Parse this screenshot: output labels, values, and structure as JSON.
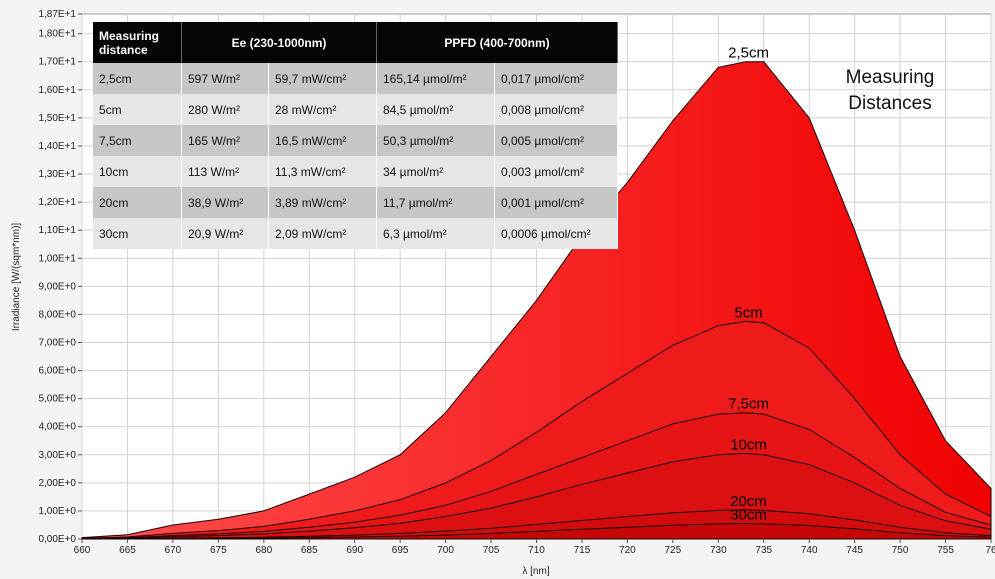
{
  "chart_data": {
    "type": "area",
    "xlabel": "λ [nm]",
    "ylabel": "Irradiance [W/(sqm*nm)]",
    "xlim": [
      660,
      760
    ],
    "ylim": [
      0,
      18.7
    ],
    "x_ticks": [
      "660",
      "665",
      "670",
      "675",
      "680",
      "685",
      "690",
      "695",
      "700",
      "705",
      "710",
      "715",
      "720",
      "725",
      "730",
      "735",
      "740",
      "745",
      "750",
      "755",
      "76"
    ],
    "y_ticks": [
      "0,00E+0",
      "1,00E+0",
      "2,00E+0",
      "3,00E+0",
      "4,00E+0",
      "5,00E+0",
      "6,00E+0",
      "7,00E+0",
      "8,00E+0",
      "9,00E+0",
      "1,00E+1",
      "1,10E+1",
      "1,20E+1",
      "1,30E+1",
      "1,40E+1",
      "1,50E+1",
      "1,60E+1",
      "1,70E+1",
      "1,80E+1",
      "1,87E+1"
    ],
    "grid": true,
    "x": [
      660,
      665,
      670,
      675,
      680,
      685,
      690,
      695,
      700,
      705,
      710,
      715,
      720,
      725,
      730,
      733,
      735,
      740,
      745,
      750,
      755,
      760
    ],
    "series": [
      {
        "name": "2,5cm",
        "values": [
          0.05,
          0.15,
          0.5,
          0.7,
          1.0,
          1.6,
          2.2,
          3.0,
          4.5,
          6.5,
          8.5,
          10.8,
          12.7,
          14.9,
          16.8,
          17.0,
          17.0,
          15.0,
          11.0,
          6.5,
          3.5,
          1.8
        ]
      },
      {
        "name": "5cm",
        "values": [
          0.02,
          0.07,
          0.2,
          0.3,
          0.45,
          0.7,
          1.0,
          1.4,
          2.0,
          2.8,
          3.8,
          4.9,
          5.9,
          6.9,
          7.6,
          7.75,
          7.7,
          6.8,
          5.0,
          3.0,
          1.6,
          0.8
        ]
      },
      {
        "name": "7,5cm",
        "values": [
          0.01,
          0.04,
          0.12,
          0.18,
          0.27,
          0.42,
          0.6,
          0.85,
          1.2,
          1.7,
          2.3,
          2.9,
          3.5,
          4.1,
          4.45,
          4.5,
          4.45,
          3.9,
          2.9,
          1.8,
          0.95,
          0.5
        ]
      },
      {
        "name": "10cm",
        "values": [
          0.01,
          0.03,
          0.08,
          0.12,
          0.18,
          0.28,
          0.4,
          0.56,
          0.8,
          1.1,
          1.5,
          1.95,
          2.35,
          2.75,
          3.0,
          3.05,
          3.0,
          2.65,
          2.0,
          1.2,
          0.65,
          0.35
        ]
      },
      {
        "name": "20cm",
        "values": [
          0.0,
          0.01,
          0.03,
          0.04,
          0.06,
          0.1,
          0.14,
          0.2,
          0.28,
          0.38,
          0.52,
          0.66,
          0.8,
          0.93,
          1.02,
          1.04,
          1.02,
          0.9,
          0.68,
          0.42,
          0.22,
          0.12
        ]
      },
      {
        "name": "30cm",
        "values": [
          0.0,
          0.01,
          0.02,
          0.02,
          0.03,
          0.05,
          0.07,
          0.1,
          0.14,
          0.2,
          0.27,
          0.35,
          0.42,
          0.49,
          0.54,
          0.55,
          0.54,
          0.48,
          0.36,
          0.22,
          0.12,
          0.06
        ]
      }
    ],
    "annotation": "Measuring Distances",
    "table": {
      "header": [
        "Measuring distance",
        "Ee  (230-1000nm)",
        "PPFD (400-700nm)"
      ],
      "rows": [
        [
          "2,5cm",
          "597 W/m²",
          "59,7 mW/cm²",
          "165,14 µmol/m²",
          "0,017 µmol/cm²"
        ],
        [
          "5cm",
          "280 W/m²",
          "28 mW/cm²",
          "84,5 µmol/m²",
          "0,008 µmol/cm²"
        ],
        [
          "7,5cm",
          "165 W/m²",
          "16,5 mW/cm²",
          "50,3 µmol/m²",
          "0,005 µmol/cm²"
        ],
        [
          "10cm",
          "113 W/m²",
          "11,3 mW/cm²",
          "34 µmol/m²",
          "0,003 µmol/cm²"
        ],
        [
          "20cm",
          "38,9 W/m²",
          "3,89 mW/cm²",
          "11,7 µmol/m²",
          "0,001 µmol/cm²"
        ],
        [
          "30cm",
          "20,9 W/m²",
          "2,09 mW/cm²",
          "6,3 µmol/m²",
          "0,0006 µmol/cm²"
        ]
      ]
    }
  },
  "colors": {
    "fill_light": "#ff3a3a",
    "fill_dark": "#e60000",
    "grid": "#d2d2d2",
    "line": "#1a0000"
  }
}
